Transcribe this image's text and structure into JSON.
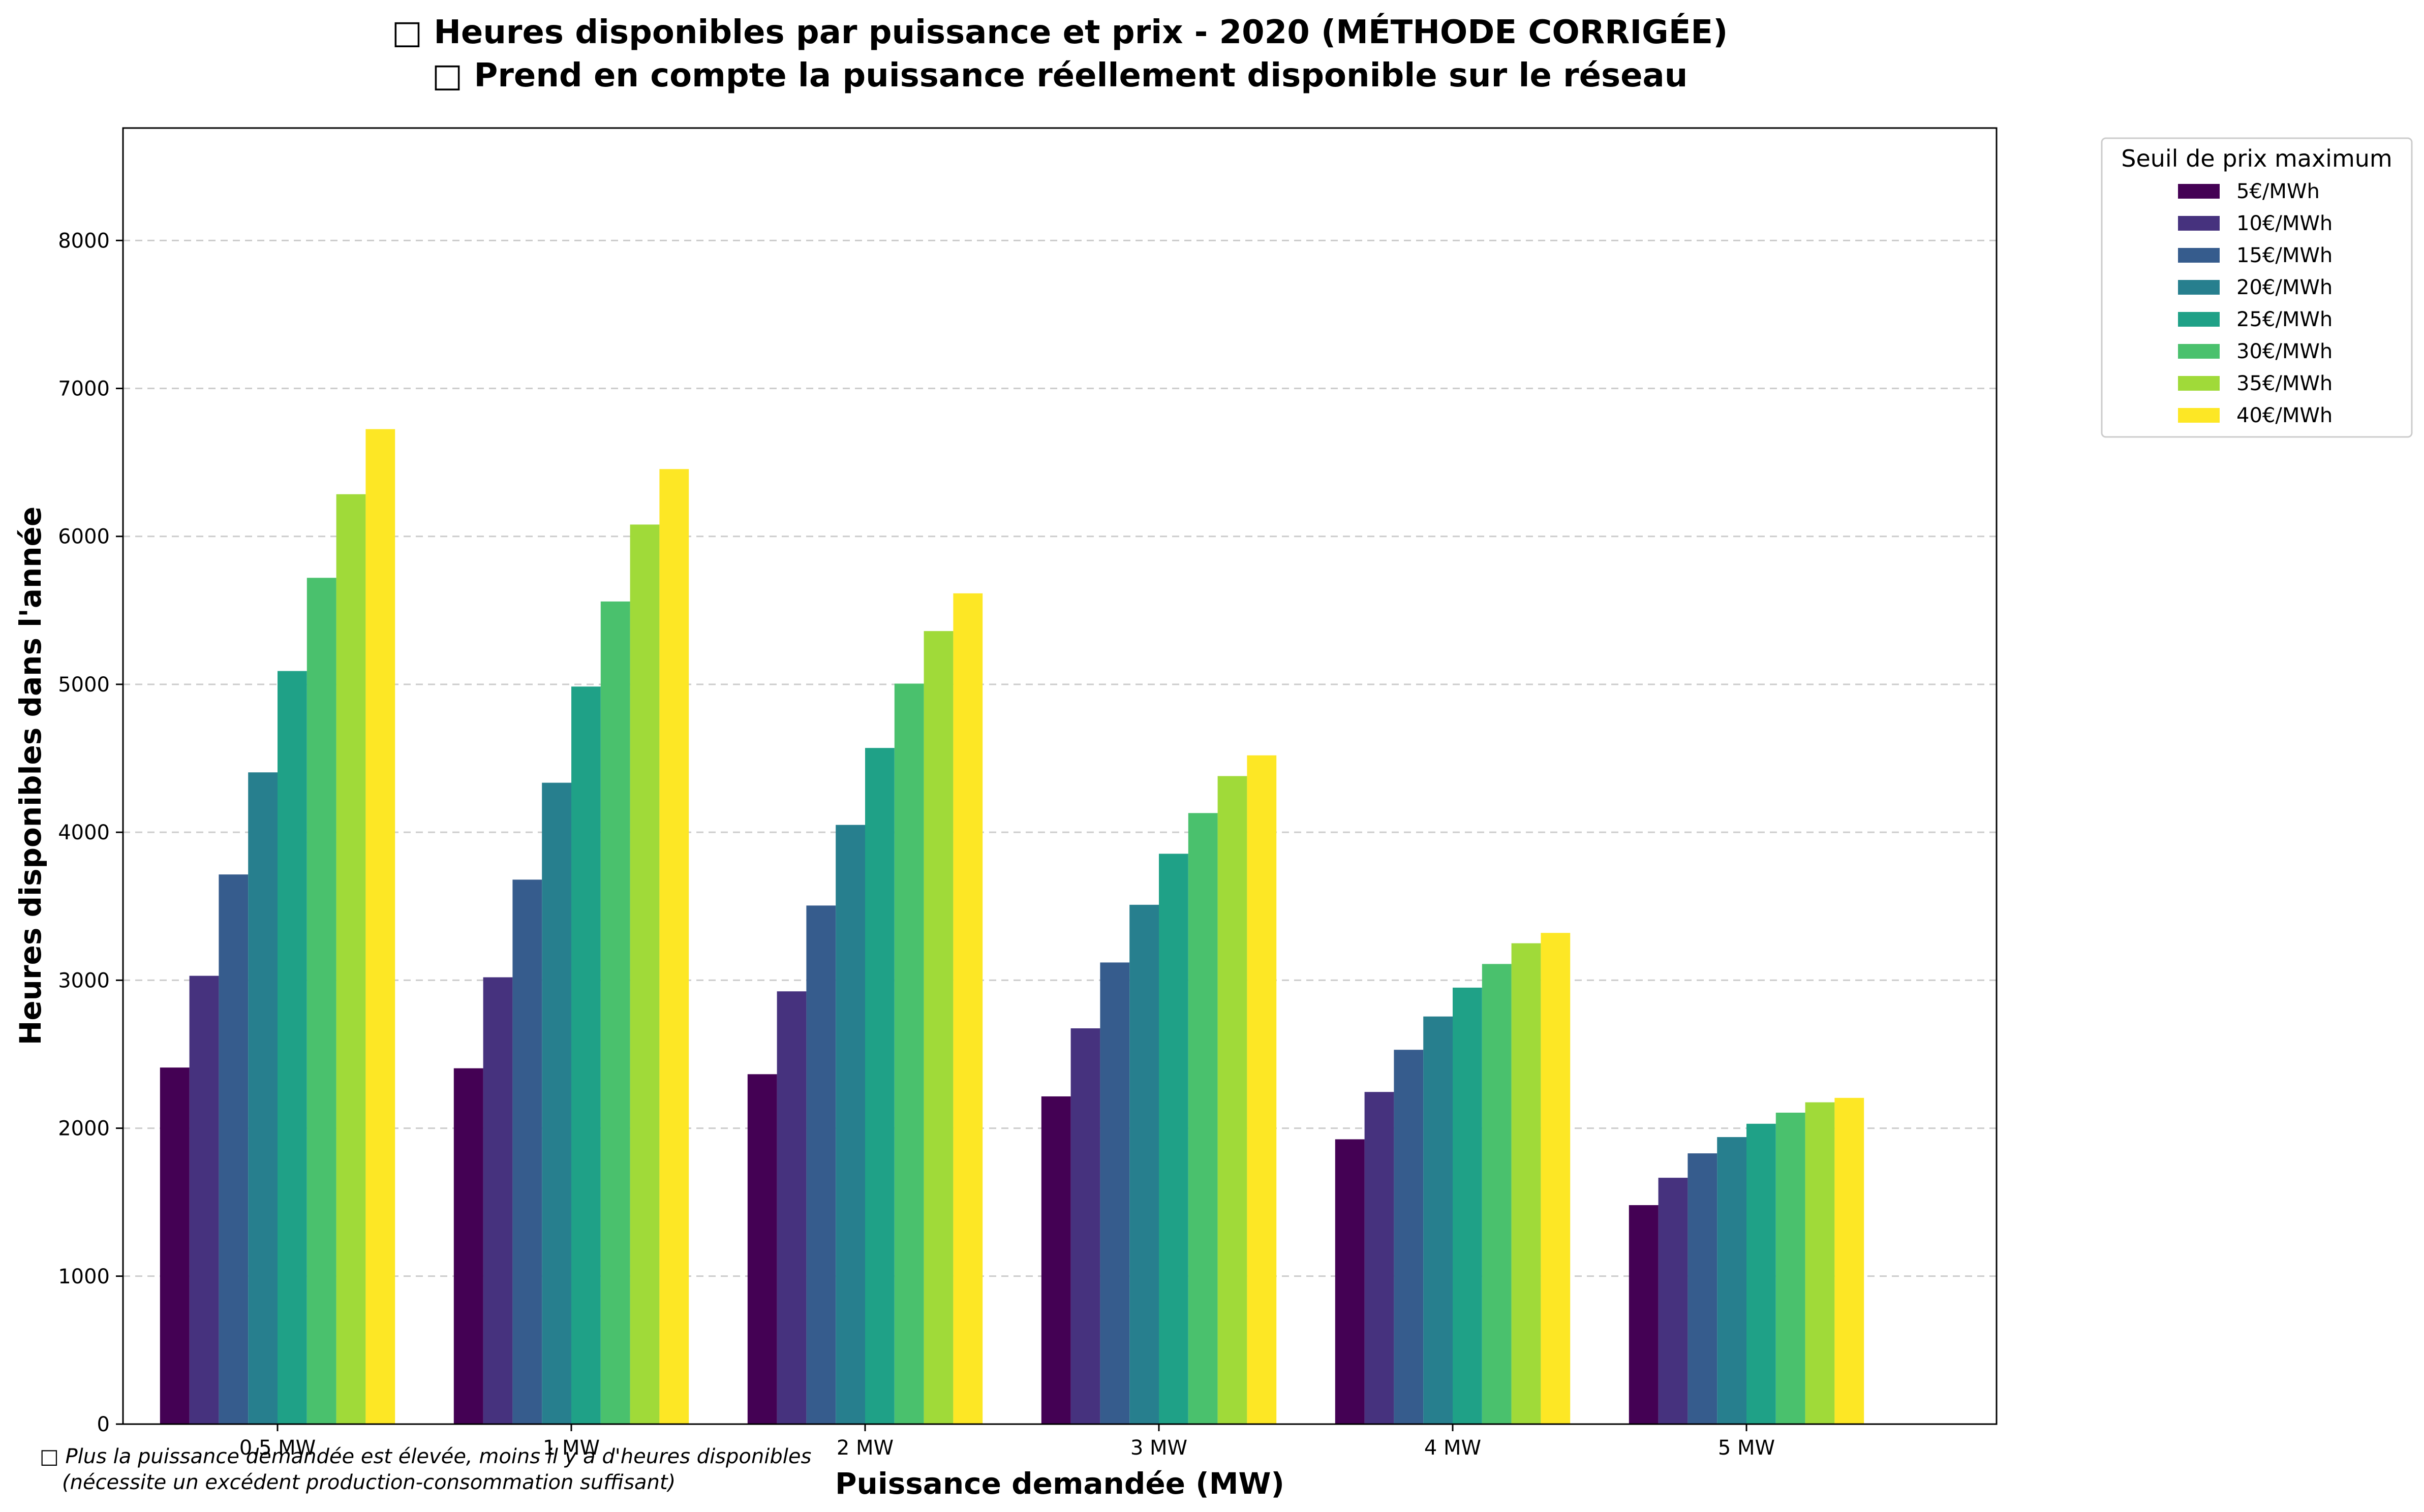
{
  "chart_data": {
    "type": "bar",
    "title": "□ Heures disponibles par puissance et prix - 2020 (MÉTHODE CORRIGÉE)",
    "subtitle": "□ Prend en compte la puissance réellement disponible sur le réseau",
    "xlabel": "Puissance demandée (MW)",
    "ylabel": "Heures disponibles dans l'année",
    "ylim": [
      0,
      8760
    ],
    "yticks": [
      0,
      1000,
      2000,
      3000,
      4000,
      5000,
      6000,
      7000,
      8000
    ],
    "grid": "y-dashed",
    "categories": [
      "0.5 MW",
      "1 MW",
      "2 MW",
      "3 MW",
      "4 MW",
      "5 MW"
    ],
    "legend": {
      "title": "Seuil de prix maximum",
      "placement": "outside-top-right"
    },
    "series": [
      {
        "name": "5€/MWh",
        "color": "#440154",
        "values": [
          2410,
          2405,
          2365,
          2215,
          1925,
          1480
        ]
      },
      {
        "name": "10€/MWh",
        "color": "#46327e",
        "values": [
          3030,
          3020,
          2925,
          2675,
          2245,
          1665
        ]
      },
      {
        "name": "15€/MWh",
        "color": "#365c8d",
        "values": [
          3715,
          3680,
          3505,
          3120,
          2530,
          1830
        ]
      },
      {
        "name": "20€/MWh",
        "color": "#277f8e",
        "values": [
          4405,
          4335,
          4050,
          3510,
          2755,
          1940
        ]
      },
      {
        "name": "25€/MWh",
        "color": "#1fa187",
        "values": [
          5090,
          4985,
          4570,
          3855,
          2950,
          2030
        ]
      },
      {
        "name": "30€/MWh",
        "color": "#4ac16d",
        "values": [
          5720,
          5560,
          5005,
          4130,
          3110,
          2105
        ]
      },
      {
        "name": "35€/MWh",
        "color": "#a0da39",
        "values": [
          6285,
          6080,
          5360,
          4380,
          3250,
          2175
        ]
      },
      {
        "name": "40€/MWh",
        "color": "#fde725",
        "values": [
          6725,
          6455,
          5615,
          4520,
          3320,
          2205
        ]
      }
    ]
  },
  "footnote": {
    "line1": "□ Plus la puissance demandée est élevée, moins il y a d'heures disponibles",
    "line2": "(nécessite un excédent production-consommation suffisant)"
  }
}
